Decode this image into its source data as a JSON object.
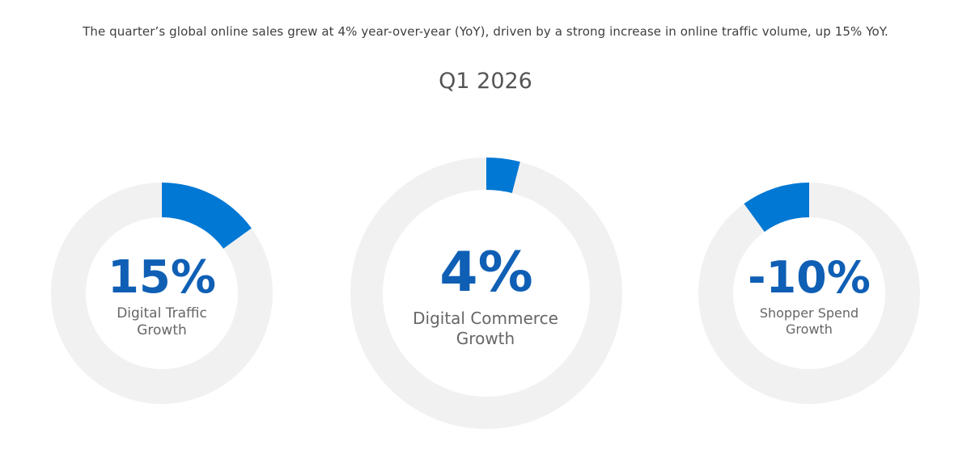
{
  "header": {
    "subtitle": "The quarter’s global online sales grew at 4% year-over-year (YoY), driven by a strong increase in online traffic volume, up 15% YoY.",
    "period": "Q1 2026"
  },
  "colors": {
    "accent": "#0078D4",
    "value_text": "#0F5FB5",
    "track": "#F2F1F1",
    "label_text": "#666666"
  },
  "chart_data": [
    {
      "type": "pie",
      "variant": "donut",
      "value": 15,
      "value_label": "15%",
      "label_line1": "Digital Traffic",
      "label_line2": "Growth",
      "direction": "clockwise"
    },
    {
      "type": "pie",
      "variant": "donut",
      "value": 4,
      "value_label": "4%",
      "label_line1": "Digital Commerce",
      "label_line2": "Growth",
      "direction": "clockwise"
    },
    {
      "type": "pie",
      "variant": "donut",
      "value": -10,
      "value_label": "-10%",
      "label_line1": "Shopper Spend",
      "label_line2": "Growth",
      "direction": "counterclockwise"
    }
  ]
}
